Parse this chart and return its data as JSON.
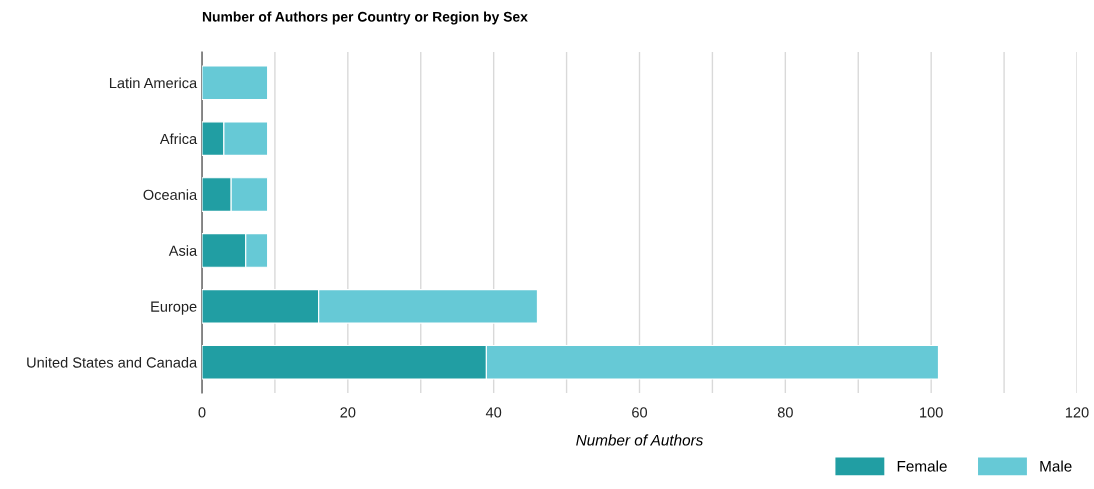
{
  "chart_data": {
    "type": "bar",
    "orientation": "horizontal",
    "stacked": true,
    "title": "Number of Authors per Country or Region by Sex",
    "xlabel": "Number of Authors",
    "categories": [
      "Latin America",
      "Africa",
      "Oceania",
      "Asia",
      "Europe",
      "United States and Canada"
    ],
    "series": [
      {
        "name": "Female",
        "color": "#219ea3",
        "values": [
          0,
          3,
          4,
          6,
          16,
          39
        ]
      },
      {
        "name": "Male",
        "color": "#66c9d6",
        "values": [
          9,
          6,
          5,
          3,
          30,
          62
        ]
      }
    ],
    "xlim": [
      0,
      120
    ],
    "xticks": [
      0,
      {
        "value": 10,
        "label": null
      },
      20,
      {
        "value": 30,
        "label": null
      },
      40,
      {
        "value": 50,
        "label": null
      },
      60,
      {
        "value": 70,
        "label": null
      },
      80,
      {
        "value": 90,
        "label": null
      },
      100,
      {
        "value": 110,
        "label": null
      },
      120
    ],
    "grid": "x",
    "legend": "bottom right"
  }
}
